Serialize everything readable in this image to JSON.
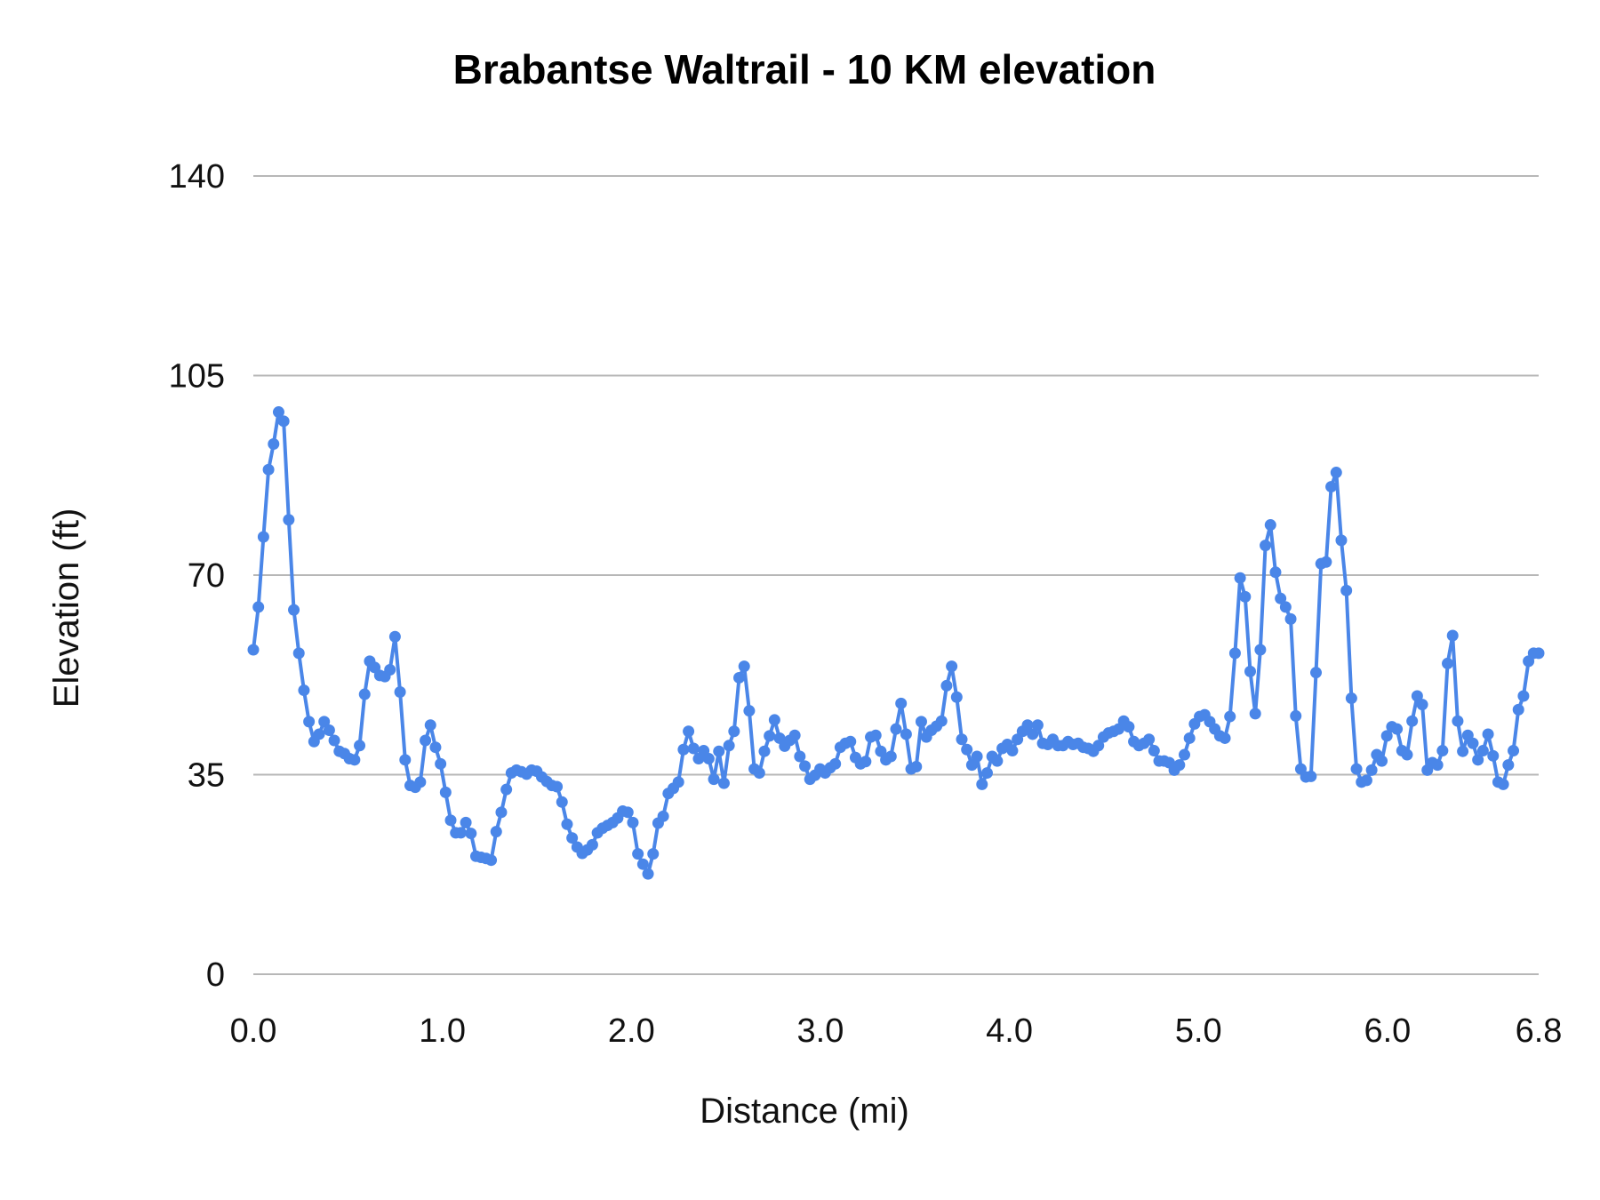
{
  "chart_data": {
    "type": "line",
    "title": "Brabantse Waltrail - 10 KM elevation",
    "xlabel": "Distance (mi)",
    "ylabel": "Elevation (ft)",
    "xlim": [
      0,
      6.8
    ],
    "ylim": [
      0,
      140
    ],
    "x_ticks": [
      "0.0",
      "1.0",
      "2.0",
      "3.0",
      "4.0",
      "5.0",
      "6.0",
      "6.8"
    ],
    "x_tick_values": [
      0,
      1,
      2,
      3,
      4,
      5,
      6,
      6.8
    ],
    "y_ticks": [
      "0",
      "35",
      "70",
      "105",
      "140"
    ],
    "y_tick_values": [
      0,
      35,
      70,
      105,
      140
    ],
    "grid": "horizontal",
    "legend": "none",
    "markers": true,
    "color": "#4a86e8",
    "grid_color": "#b7b7b7",
    "series": [
      {
        "values": [
          56.9,
          64.4,
          76.7,
          88.5,
          93.0,
          98.6,
          97.0,
          79.7,
          63.9,
          56.3,
          49.8,
          44.3,
          40.8,
          42.1,
          44.3,
          42.8,
          41.0,
          39.1,
          38.7,
          37.8,
          37.6,
          40.1,
          49.1,
          54.9,
          53.8,
          52.4,
          52.2,
          53.4,
          59.2,
          49.5,
          37.6,
          33.1,
          32.8,
          33.7,
          41.0,
          43.7,
          39.8,
          36.9,
          31.9,
          27.0,
          24.8,
          24.8,
          26.6,
          24.7,
          20.7,
          20.5,
          20.3,
          20.0,
          25.0,
          28.4,
          32.4,
          35.3,
          35.8,
          35.5,
          35.1,
          35.8,
          35.6,
          34.6,
          33.8,
          33.1,
          32.9,
          30.2,
          26.3,
          23.9,
          22.3,
          21.2,
          21.8,
          22.7,
          24.8,
          25.6,
          26.1,
          26.6,
          27.4,
          28.6,
          28.4,
          26.6,
          21.1,
          19.3,
          17.6,
          21.1,
          26.5,
          27.7,
          31.7,
          32.6,
          33.7,
          39.4,
          42.6,
          39.6,
          37.8,
          39.2,
          37.8,
          34.2,
          39.1,
          33.5,
          40.1,
          42.6,
          52.0,
          54.0,
          46.2,
          36.0,
          35.3,
          39.1,
          41.8,
          44.6,
          41.4,
          40.0,
          41.0,
          41.9,
          38.2,
          36.5,
          34.2,
          34.9,
          36.0,
          35.3,
          36.2,
          36.9,
          39.8,
          40.5,
          40.8,
          38.0,
          36.9,
          37.3,
          41.6,
          41.9,
          39.1,
          37.6,
          38.2,
          43.0,
          47.5,
          42.1,
          36.0,
          36.4,
          44.3,
          41.6,
          42.8,
          43.5,
          44.4,
          50.6,
          54.0,
          48.6,
          41.2,
          39.4,
          36.7,
          38.2,
          33.3,
          35.3,
          38.2,
          37.4,
          39.6,
          40.3,
          39.2,
          41.2,
          42.6,
          43.7,
          42.1,
          43.7,
          40.5,
          40.3,
          41.2,
          40.1,
          40.1,
          40.8,
          40.3,
          40.5,
          39.8,
          39.6,
          39.1,
          40.1,
          41.6,
          42.3,
          42.6,
          43.0,
          44.4,
          43.4,
          40.8,
          40.1,
          40.5,
          41.2,
          39.2,
          37.4,
          37.4,
          37.1,
          35.8,
          36.7,
          38.5,
          41.4,
          43.9,
          45.2,
          45.5,
          44.3,
          43.0,
          41.8,
          41.4,
          45.2,
          56.3,
          69.5,
          66.2,
          53.1,
          45.7,
          56.9,
          75.2,
          78.8,
          70.5,
          65.9,
          64.4,
          62.3,
          45.3,
          36.0,
          34.6,
          34.7,
          52.9,
          72.0,
          72.3,
          85.5,
          88.0,
          76.1,
          67.3,
          48.4,
          36.0,
          33.7,
          34.0,
          35.8,
          38.5,
          37.4,
          41.8,
          43.4,
          43.0,
          39.2,
          38.5,
          44.4,
          48.8,
          47.3,
          35.8,
          37.1,
          36.7,
          39.2,
          54.5,
          59.4,
          44.4,
          39.1,
          41.9,
          40.5,
          37.6,
          39.2,
          42.1,
          38.3,
          33.7,
          33.3,
          36.7,
          39.2,
          46.4,
          48.8,
          54.9,
          56.3,
          56.3
        ]
      }
    ]
  }
}
